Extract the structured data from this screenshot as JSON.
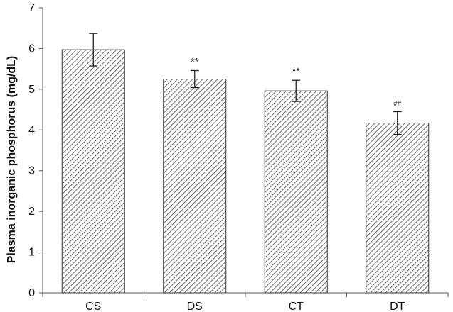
{
  "chart_data": {
    "type": "bar",
    "categories": [
      "CS",
      "DS",
      "CT",
      "DT"
    ],
    "values": [
      5.97,
      5.25,
      4.96,
      4.17
    ],
    "error": [
      0.4,
      0.21,
      0.26,
      0.28
    ],
    "annotations": [
      "",
      "**",
      "**",
      "##"
    ],
    "ylabel": "Plasma inorganic phosphorus (mg/dL)",
    "xlabel": "",
    "ylim": [
      0,
      7
    ],
    "yticks": [
      0,
      1,
      2,
      3,
      4,
      5,
      6,
      7
    ],
    "grid": false,
    "bar_style": "diagonal-hatch",
    "colors": {
      "bar_stroke": "#333333",
      "hatch": "#444444",
      "axis": "#555555",
      "error_bar": "#222222"
    }
  }
}
